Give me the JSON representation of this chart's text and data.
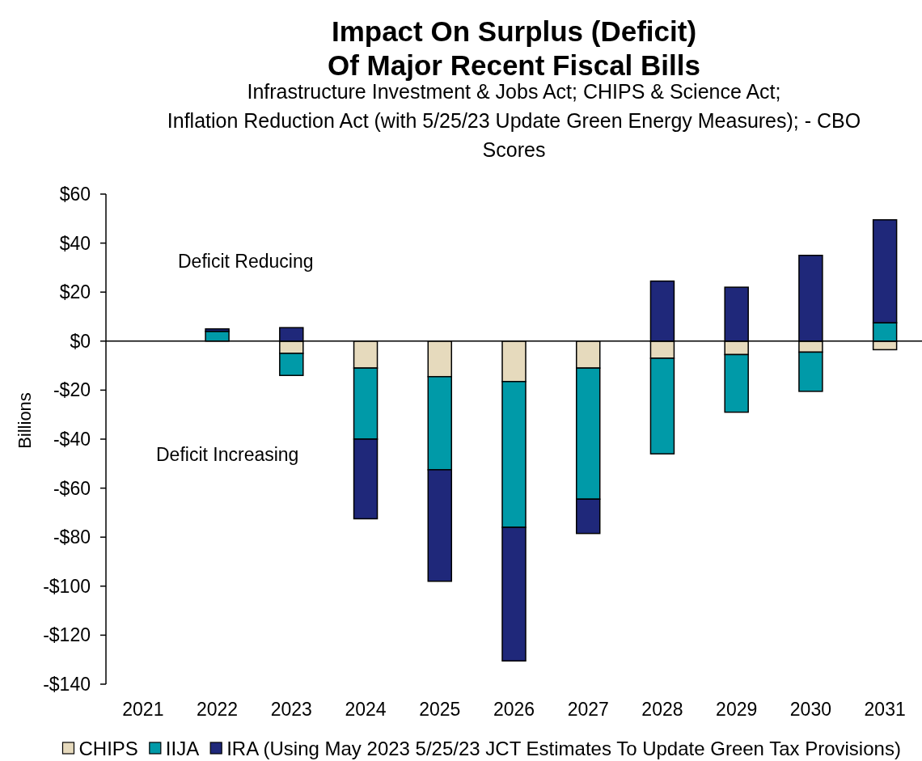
{
  "chart_data": {
    "type": "bar",
    "title": "Impact On Surplus (Deficit)\nOf Major Recent Fiscal Bills",
    "subtitle": "Infrastructure Investment & Jobs Act; CHIPS & Science Act;\nInflation Reduction Act (with 5/25/23 Update Green Energy Measures); - CBO Scores",
    "ylabel": "Billions",
    "annotations": [
      "Deficit Reducing",
      "Deficit Increasing"
    ],
    "categories": [
      "2021",
      "2022",
      "2023",
      "2024",
      "2025",
      "2026",
      "2027",
      "2028",
      "2029",
      "2030",
      "2031"
    ],
    "stacked": true,
    "series": [
      {
        "name": "CHIPS",
        "color": "#e6dabd",
        "values": [
          null,
          null,
          -5,
          -11,
          -14.5,
          -16.5,
          -11,
          -7,
          -5.5,
          -4.5,
          -3.5
        ]
      },
      {
        "name": "IIJA",
        "color": "#009aa8",
        "values": [
          null,
          4,
          -9,
          -29,
          -38,
          -59.5,
          -53.5,
          -39,
          -23.5,
          -16,
          7.5
        ]
      },
      {
        "name": "IRA (Using May 2023 5/25/23 JCT Estimates To Update Green Tax Provisions)",
        "color": "#1f287a",
        "values": [
          null,
          1,
          5.5,
          -32.5,
          -45.5,
          -54.5,
          -14,
          24.5,
          22,
          35,
          42
        ]
      }
    ],
    "ylim": [
      -140,
      60
    ],
    "yticks": [
      {
        "value": -140,
        "label": "-$140"
      },
      {
        "value": -120,
        "label": "-$120"
      },
      {
        "value": -100,
        "label": "-$100"
      },
      {
        "value": -80,
        "label": "-$80"
      },
      {
        "value": -60,
        "label": "-$60"
      },
      {
        "value": -40,
        "label": "-$40"
      },
      {
        "value": -20,
        "label": "-$20"
      },
      {
        "value": 0,
        "label": "$0"
      },
      {
        "value": 20,
        "label": "$20"
      },
      {
        "value": 40,
        "label": "$40"
      },
      {
        "value": 60,
        "label": "$60"
      }
    ],
    "legend": "bottom"
  }
}
